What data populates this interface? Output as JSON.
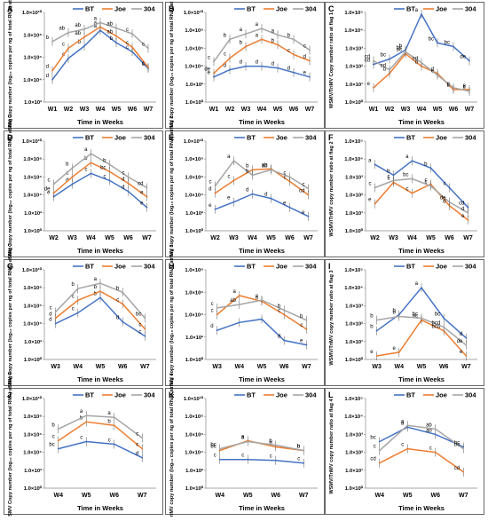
{
  "figure": {
    "legend": {
      "entries": [
        {
          "label": "BT",
          "color": "#4472C4"
        },
        {
          "label": "Joe",
          "color": "#ED7D31"
        },
        {
          "label": "304",
          "color": "#A5A5A5"
        }
      ]
    },
    "x_axis_title": "Time in Weeks"
  },
  "chart_data": [
    {
      "panel_label": "A",
      "type": "line",
      "y_scale": "log",
      "ylabel": "WSMV Copy number (log₁₀ copies per ng of total RNA) at flag 1",
      "yticks": [
        "1.0×10²",
        "1.0×10⁴",
        "1.0×10⁶",
        "1.0×10⁸",
        "1.0×10¹⁰"
      ],
      "ylim": [
        2,
        10
      ],
      "x": [
        "W1",
        "W2",
        "W3",
        "W4",
        "W5",
        "W6",
        "W7"
      ],
      "series": [
        {
          "name": "BT",
          "values": [
            4.0,
            5.9,
            7.0,
            8.4,
            7.3,
            6.5,
            5.0
          ],
          "letters": [
            "d",
            "c",
            "b",
            "a",
            "b",
            "c",
            "c"
          ]
        },
        {
          "name": "Joe",
          "values": [
            4.8,
            6.8,
            7.8,
            8.7,
            7.9,
            6.9,
            5.1
          ],
          "letters": [
            "d",
            "c",
            "ab",
            "a",
            "ab",
            "c",
            "c"
          ]
        },
        {
          "name": "304",
          "values": [
            7.4,
            8.2,
            8.5,
            9.1,
            8.6,
            8.1,
            6.8
          ],
          "letters": [
            "b",
            "ab",
            "ab",
            "a",
            "ab",
            "c",
            "c"
          ]
        }
      ]
    },
    {
      "panel_label": "B",
      "type": "line",
      "y_scale": "log",
      "ylabel": "TriMV copy number (log₁₀ copies per ng of total RNA) at flag 1",
      "yticks": [
        "1.0×10⁰",
        "1.0×10²",
        "1.0×10⁴",
        "1.0×10⁶",
        "1.0×10⁸",
        "1.0×10¹⁰"
      ],
      "ylim": [
        0,
        10
      ],
      "x": [
        "W1",
        "W2",
        "W3",
        "W4",
        "W5",
        "W6",
        "W7"
      ],
      "series": [
        {
          "name": "BT",
          "values": [
            2.8,
            3.6,
            4.0,
            4.0,
            3.8,
            3.3,
            2.8
          ],
          "letters": [
            "e",
            "d",
            "d",
            "d",
            "d",
            "d",
            "e"
          ]
        },
        {
          "name": "Joe",
          "values": [
            3.2,
            4.9,
            6.2,
            7.0,
            6.4,
            5.3,
            4.6
          ],
          "letters": [
            "de",
            "c",
            "b",
            "a",
            "b",
            "c",
            "d"
          ]
        },
        {
          "name": "304",
          "values": [
            4.5,
            7.0,
            7.6,
            8.2,
            7.5,
            7.0,
            5.8
          ],
          "letters": [
            "c",
            "b",
            "a",
            "a",
            "a",
            "b",
            "c"
          ]
        }
      ]
    },
    {
      "panel_label": "C",
      "type": "line",
      "y_scale": "log",
      "ylabel": "WSMV/TriMV Copy number ratio at flag 1",
      "yticks": [
        "1.0×10⁰",
        "1.0×10¹",
        "1.0×10²",
        "1.0×10³",
        "1.0×10⁴",
        "1.0×10⁵"
      ],
      "ylim": [
        0,
        5
      ],
      "x": [
        "W1",
        "W2",
        "W3",
        "W4",
        "W5",
        "W6",
        "W7"
      ],
      "series": [
        {
          "name": "BT",
          "values": [
            2.1,
            2.4,
            2.9,
            4.9,
            3.3,
            3.1,
            2.3
          ],
          "letters": [
            "cd",
            "bc",
            "b",
            "a",
            "bc",
            "bc",
            "de"
          ]
        },
        {
          "name": "Joe",
          "values": [
            0.8,
            1.6,
            2.7,
            2.0,
            1.6,
            0.7,
            0.7
          ],
          "letters": [
            "e",
            "d",
            "bc",
            "d",
            "d",
            "e",
            "e"
          ]
        },
        {
          "name": "304",
          "values": [
            2.3,
            1.8,
            2.8,
            2.2,
            1.5,
            0.8,
            0.6
          ],
          "letters": [
            "cd",
            "cd",
            "bc",
            "cd",
            "e",
            "e",
            "e"
          ]
        }
      ]
    },
    {
      "panel_label": "D",
      "type": "line",
      "y_scale": "log",
      "ylabel": "WSMV Copy number (log₁₀ copies per ng of total RNA) at flag 2",
      "yticks": [
        "1.0×10⁰",
        "1.0×10²",
        "1.0×10⁴",
        "1.0×10⁶",
        "1.0×10⁸",
        "1.0×10¹⁰"
      ],
      "ylim": [
        0,
        10
      ],
      "x": [
        "W2",
        "W3",
        "W4",
        "W5",
        "W6",
        "W7"
      ],
      "series": [
        {
          "name": "BT",
          "values": [
            3.8,
            5.2,
            6.4,
            5.6,
            4.4,
            2.6
          ],
          "letters": [
            "e",
            "d",
            "c",
            "c",
            "d",
            "e"
          ]
        },
        {
          "name": "Joe",
          "values": [
            4.2,
            6.0,
            7.6,
            6.6,
            5.3,
            3.8
          ],
          "letters": [
            "de",
            "c",
            "b",
            "bc",
            "d",
            "e"
          ]
        },
        {
          "name": "304",
          "values": [
            5.2,
            7.0,
            8.6,
            7.4,
            6.0,
            4.8
          ],
          "letters": [
            "c",
            "b",
            "a",
            "b",
            "c",
            "cd"
          ]
        }
      ]
    },
    {
      "panel_label": "E",
      "type": "line",
      "y_scale": "log",
      "ylabel": "TriMV copy number (log₁₀ copies per ng of total RNA) at flag 2",
      "yticks": [
        "1.0×10⁰",
        "1.0×10²",
        "1.0×10⁴",
        "1.0×10⁶",
        "1.0×10⁸",
        "1.0×10¹⁰"
      ],
      "ylim": [
        0,
        10
      ],
      "x": [
        "W2",
        "W3",
        "W4",
        "W5",
        "W6",
        "W7"
      ],
      "series": [
        {
          "name": "BT",
          "values": [
            2.4,
            3.2,
            4.1,
            3.6,
            2.6,
            1.6
          ],
          "letters": [
            "e",
            "e",
            "d",
            "d",
            "e",
            "e"
          ]
        },
        {
          "name": "Joe",
          "values": [
            4.2,
            5.6,
            6.8,
            6.9,
            5.5,
            4.0
          ],
          "letters": [
            "d",
            "c",
            "b",
            "ab",
            "c",
            "cd"
          ]
        },
        {
          "name": "304",
          "values": [
            5.0,
            7.8,
            6.2,
            6.8,
            6.0,
            4.7
          ],
          "letters": [
            "c",
            "a",
            "b",
            "ab",
            "c",
            "c"
          ]
        }
      ]
    },
    {
      "panel_label": "F",
      "type": "line",
      "y_scale": "log",
      "ylabel": "WSMV/TriMV copy number ratio at flag 2",
      "yticks": [
        "1.0×10⁰",
        "1.0×10¹",
        "1.0×10²",
        "1.0×10³",
        "1.0×10⁴",
        "1.0×10⁵"
      ],
      "ylim": [
        0,
        5
      ],
      "x": [
        "W2",
        "W3",
        "W4",
        "W5",
        "W6",
        "W7"
      ],
      "series": [
        {
          "name": "BT",
          "values": [
            3.7,
            3.1,
            3.9,
            3.5,
            2.4,
            1.3
          ],
          "letters": [
            "a",
            "b",
            "a",
            "b",
            "c",
            "cd"
          ]
        },
        {
          "name": "Joe",
          "values": [
            1.5,
            2.7,
            2.1,
            2.6,
            1.4,
            0.6
          ],
          "letters": [
            "e",
            "c",
            "c",
            "c",
            "d",
            "e"
          ]
        },
        {
          "name": "304",
          "values": [
            2.4,
            2.8,
            2.9,
            2.5,
            1.6,
            1.0
          ],
          "letters": [
            "c",
            "c",
            "bc",
            "c",
            "de",
            "d"
          ]
        }
      ]
    },
    {
      "panel_label": "G",
      "type": "line",
      "y_scale": "log",
      "ylabel": "WSMV Copy number (log₁₀ copies per ng of total RNA) at flag 3",
      "yticks": [
        "1.0×10⁰",
        "1.0×10²",
        "1.0×10⁴",
        "1.0×10⁶",
        "1.0×10⁸",
        "1.0×10¹⁰"
      ],
      "ylim": [
        0,
        10
      ],
      "x": [
        "W3",
        "W4",
        "W5",
        "W6",
        "W7"
      ],
      "series": [
        {
          "name": "BT",
          "values": [
            4.0,
            5.2,
            6.9,
            4.2,
            2.6
          ],
          "letters": [
            "d",
            "c",
            "b",
            "d",
            "c"
          ]
        },
        {
          "name": "Joe",
          "values": [
            4.6,
            6.6,
            7.6,
            6.2,
            3.4
          ],
          "letters": [
            "d",
            "c",
            "b",
            "c",
            "c"
          ]
        },
        {
          "name": "304",
          "values": [
            5.3,
            7.9,
            8.5,
            7.5,
            4.6
          ],
          "letters": [
            "c",
            "b",
            "a",
            "b",
            "bc"
          ]
        }
      ]
    },
    {
      "panel_label": "H",
      "type": "line",
      "y_scale": "log",
      "ylabel": "TriMV copy number (log₁₀ copies per ng of total RNA) at flag 3",
      "yticks": [
        "1.0×10⁰",
        "1.0×10²",
        "1.0×10⁴",
        "1.0×10⁶",
        "1.0×10⁸"
      ],
      "ylim": [
        0,
        8
      ],
      "x": [
        "W3",
        "W4",
        "W5",
        "W6",
        "W7"
      ],
      "series": [
        {
          "name": "BT",
          "values": [
            2.6,
            3.3,
            3.6,
            1.7,
            1.3
          ],
          "letters": [
            "d",
            "",
            "",
            "d",
            "e"
          ]
        },
        {
          "name": "Joe",
          "values": [
            4.0,
            5.7,
            5.2,
            4.0,
            2.7
          ],
          "letters": [
            "c",
            "a",
            "a",
            "c",
            "c"
          ]
        },
        {
          "name": "304",
          "values": [
            4.6,
            4.9,
            5.3,
            4.4,
            3.5
          ],
          "letters": [
            "c",
            "ab",
            "a",
            "b",
            "b"
          ]
        }
      ]
    },
    {
      "panel_label": "I",
      "type": "line",
      "y_scale": "log",
      "ylabel": "WSMV/TriMV copy number ratio at flag 3",
      "yticks": [
        "1.0×10⁰",
        "1.0×10¹",
        "1.0×10²",
        "1.0×10³",
        "1.0×10⁴",
        "1.0×10⁵"
      ],
      "ylim": [
        0,
        5
      ],
      "x": [
        "W3",
        "W4",
        "W5",
        "W6",
        "W7"
      ],
      "series": [
        {
          "name": "BT",
          "values": [
            1.6,
            2.5,
            4.0,
            2.3,
            1.2
          ],
          "letters": [
            "b",
            "b",
            "a",
            "bc",
            "d"
          ]
        },
        {
          "name": "Joe",
          "values": [
            0.2,
            0.4,
            2.2,
            1.6,
            0.2
          ],
          "letters": [
            "e",
            "e",
            "bc",
            "bcd",
            "e"
          ]
        },
        {
          "name": "304",
          "values": [
            2.2,
            2.4,
            2.3,
            1.8,
            0.8
          ],
          "letters": [
            "b",
            "b",
            "bc",
            "bcd",
            "de"
          ]
        }
      ]
    },
    {
      "panel_label": "J",
      "type": "line",
      "y_scale": "log",
      "ylabel": "WSMV Copy number (log₁₀ copies per ng of total RNA) at flag 4",
      "yticks": [
        "1.0×10⁰",
        "1.0×10²",
        "1.0×10⁴",
        "1.0×10⁶",
        "1.0×10⁸",
        "1.0×10¹⁰"
      ],
      "ylim": [
        0,
        10
      ],
      "x": [
        "W4",
        "W5",
        "W6",
        "W7"
      ],
      "series": [
        {
          "name": "BT",
          "values": [
            4.4,
            5.2,
            4.9,
            3.4
          ],
          "letters": [
            "bc",
            "c",
            "c",
            "d"
          ]
        },
        {
          "name": "Joe",
          "values": [
            5.3,
            7.4,
            7.0,
            4.4
          ],
          "letters": [
            "c",
            "b",
            "b",
            "c"
          ]
        },
        {
          "name": "304",
          "values": [
            6.6,
            8.1,
            7.9,
            5.6
          ],
          "letters": [
            "b",
            "a",
            "a",
            "c"
          ]
        }
      ]
    },
    {
      "panel_label": "K",
      "type": "line",
      "y_scale": "log",
      "ylabel": "TriMV copy number (log₁₀ copies per ng of total RNA) at flag 4",
      "yticks": [
        "1.0×10⁰",
        "1.0×10²",
        "1.0×10⁴",
        "1.0×10⁶",
        "1.0×10⁸",
        "1.0×10¹⁰"
      ],
      "ylim": [
        0,
        10
      ],
      "x": [
        "W4",
        "W5",
        "W6",
        "W7"
      ],
      "series": [
        {
          "name": "BT",
          "values": [
            3.2,
            3.2,
            3.1,
            2.8
          ],
          "letters": [
            "c",
            "c",
            "c",
            "c"
          ]
        },
        {
          "name": "Joe",
          "values": [
            4.2,
            5.3,
            4.6,
            4.2
          ],
          "letters": [
            "bc",
            "a",
            "b",
            "b"
          ]
        },
        {
          "name": "304",
          "values": [
            4.4,
            5.2,
            4.8,
            4.2
          ],
          "letters": [
            "bc",
            "a",
            "b",
            "b"
          ]
        }
      ]
    },
    {
      "panel_label": "L",
      "type": "line",
      "y_scale": "log",
      "ylabel": "WSMV/TriMV copy number ratio at flag 4",
      "yticks": [
        "1.0×10⁰",
        "1.0×10¹",
        "1.0×10²",
        "1.0×10³",
        "1.0×10⁴",
        "1.0×10⁵"
      ],
      "ylim": [
        0,
        5
      ],
      "x": [
        "W4",
        "W5",
        "W6",
        "W7"
      ],
      "series": [
        {
          "name": "BT",
          "values": [
            2.6,
            3.4,
            3.0,
            2.3
          ],
          "letters": [
            "bc",
            "a",
            "ab",
            "bc"
          ]
        },
        {
          "name": "Joe",
          "values": [
            1.4,
            2.2,
            2.0,
            0.9
          ],
          "letters": [
            "cd",
            "c",
            "c",
            "cd"
          ]
        },
        {
          "name": "304",
          "values": [
            2.1,
            3.5,
            3.3,
            2.2
          ],
          "letters": [
            "c",
            "a",
            "ab",
            "bc"
          ]
        }
      ]
    }
  ]
}
